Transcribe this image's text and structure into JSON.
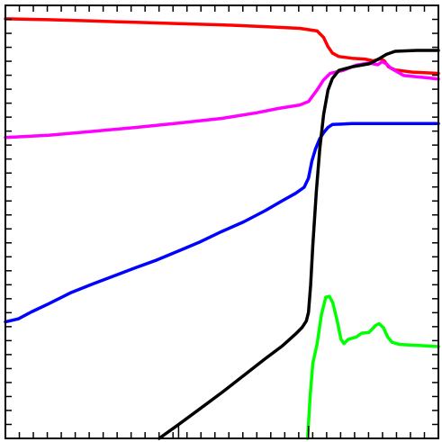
{
  "chart_data": {
    "type": "line",
    "title": "",
    "xlabel": "",
    "ylabel": "",
    "xlim": [
      0,
      100
    ],
    "ylim": [
      0,
      100
    ],
    "grid": false,
    "legend": "none",
    "x_minor_ticks": 31,
    "y_minor_ticks": 31,
    "x_major_ticks": [
      40,
      70
    ],
    "series": [
      {
        "color": "#ff0000",
        "points": [
          [
            0,
            96.9
          ],
          [
            10,
            96.7
          ],
          [
            20,
            96.4
          ],
          [
            30,
            96.1
          ],
          [
            40,
            95.8
          ],
          [
            50,
            95.5
          ],
          [
            60,
            95.1
          ],
          [
            68,
            94.7
          ],
          [
            72,
            94.1
          ],
          [
            73.5,
            92.6
          ],
          [
            74.5,
            90.5
          ],
          [
            75.5,
            89.0
          ],
          [
            77,
            88.2
          ],
          [
            80,
            87.8
          ],
          [
            83,
            87.6
          ],
          [
            85,
            87.2
          ],
          [
            86.5,
            87.7
          ],
          [
            87.5,
            87.2
          ],
          [
            88.5,
            85.8
          ],
          [
            90,
            85.1
          ],
          [
            94,
            84.6
          ],
          [
            100,
            84.3
          ]
        ]
      },
      {
        "color": "#ff00ff",
        "points": [
          [
            0,
            69.5
          ],
          [
            10,
            70.0
          ],
          [
            20,
            70.9
          ],
          [
            30,
            71.8
          ],
          [
            40,
            72.8
          ],
          [
            50,
            73.9
          ],
          [
            58,
            75.2
          ],
          [
            63,
            76.2
          ],
          [
            68,
            77.0
          ],
          [
            70,
            77.8
          ],
          [
            72,
            80.5
          ],
          [
            73.5,
            82.8
          ],
          [
            75,
            84.3
          ],
          [
            78,
            85.0
          ],
          [
            81,
            86.2
          ],
          [
            84,
            86.7
          ],
          [
            86,
            86.3
          ],
          [
            87,
            87.0
          ],
          [
            88,
            86.5
          ],
          [
            89,
            85.5
          ],
          [
            92,
            83.8
          ],
          [
            96,
            83.4
          ],
          [
            100,
            83.0
          ]
        ]
      },
      {
        "color": "#0000ff",
        "points": [
          [
            0,
            26.9
          ],
          [
            3,
            27.6
          ],
          [
            6,
            29.2
          ],
          [
            10,
            31.1
          ],
          [
            15,
            33.6
          ],
          [
            20,
            35.6
          ],
          [
            25,
            37.5
          ],
          [
            30,
            39.4
          ],
          [
            35,
            41.2
          ],
          [
            40,
            43.3
          ],
          [
            45,
            45.4
          ],
          [
            50,
            47.8
          ],
          [
            55,
            50.0
          ],
          [
            60,
            52.6
          ],
          [
            64,
            54.9
          ],
          [
            67,
            56.6
          ],
          [
            69,
            58.0
          ],
          [
            70,
            60.1
          ],
          [
            70.8,
            64.1
          ],
          [
            71.6,
            66.8
          ],
          [
            72.6,
            69.2
          ],
          [
            73.5,
            70.6
          ],
          [
            74.5,
            71.8
          ],
          [
            75.5,
            72.5
          ],
          [
            80,
            72.7
          ],
          [
            100,
            72.7
          ]
        ]
      },
      {
        "color": "#000000",
        "points": [
          [
            35.5,
            0.0
          ],
          [
            40,
            3.2
          ],
          [
            45,
            6.9
          ],
          [
            50,
            10.6
          ],
          [
            55,
            14.5
          ],
          [
            60,
            18.4
          ],
          [
            64,
            21.4
          ],
          [
            67,
            24.1
          ],
          [
            68.5,
            25.6
          ],
          [
            69.5,
            27.1
          ],
          [
            70,
            29.1
          ],
          [
            70.5,
            35.5
          ],
          [
            71,
            44.6
          ],
          [
            71.8,
            57.0
          ],
          [
            72.6,
            66.8
          ],
          [
            73.5,
            74.8
          ],
          [
            74.5,
            80.4
          ],
          [
            75.5,
            83.1
          ],
          [
            77,
            85.0
          ],
          [
            80,
            85.8
          ],
          [
            84,
            86.5
          ],
          [
            86,
            87.5
          ],
          [
            88,
            88.7
          ],
          [
            90,
            89.4
          ],
          [
            95,
            89.6
          ],
          [
            100,
            89.6
          ]
        ]
      },
      {
        "color": "#00ff00",
        "points": [
          [
            69.8,
            0.0
          ],
          [
            70.4,
            10.0
          ],
          [
            71.0,
            17.3
          ],
          [
            72.0,
            21.9
          ],
          [
            73.0,
            28.6
          ],
          [
            74.0,
            32.6
          ],
          [
            74.8,
            32.8
          ],
          [
            75.6,
            31.4
          ],
          [
            76.6,
            27.3
          ],
          [
            77.5,
            22.9
          ],
          [
            78.2,
            21.9
          ],
          [
            79.2,
            22.9
          ],
          [
            81.0,
            23.4
          ],
          [
            82.3,
            24.3
          ],
          [
            84.0,
            24.5
          ],
          [
            85.5,
            26.1
          ],
          [
            86.3,
            26.5
          ],
          [
            87.3,
            25.6
          ],
          [
            88.3,
            23.4
          ],
          [
            89.3,
            22.2
          ],
          [
            91,
            21.7
          ],
          [
            95,
            21.5
          ],
          [
            100,
            21.2
          ]
        ]
      }
    ]
  }
}
